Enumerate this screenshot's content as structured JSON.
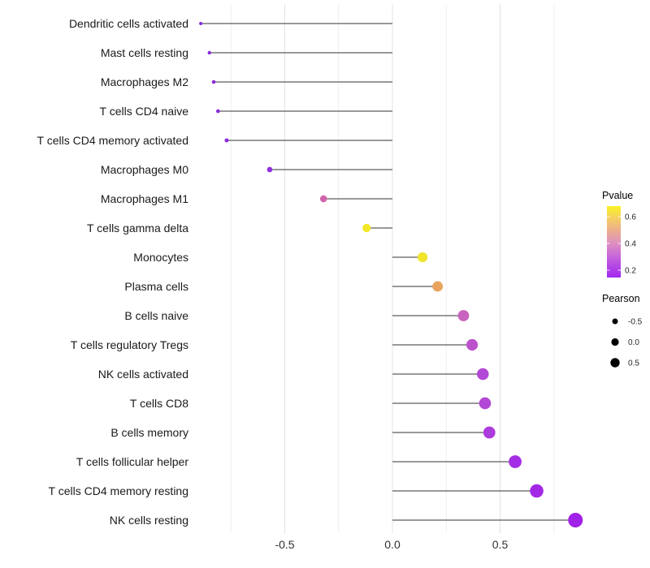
{
  "chart_data": {
    "type": "lollipop",
    "orientation": "horizontal",
    "title": "",
    "xlabel": "",
    "ylabel": "",
    "x_ticks": [
      {
        "label": "-0.5",
        "value": -0.5
      },
      {
        "label": "0.0",
        "value": 0.0
      },
      {
        "label": "0.5",
        "value": 0.5
      }
    ],
    "gridline_values": [
      -0.75,
      -0.5,
      -0.25,
      0,
      0.25,
      0.5,
      0.75
    ],
    "xlim": [
      -0.95,
      0.95
    ],
    "baseline": 0,
    "grid": "vertical-only",
    "points": [
      {
        "label": "Dendritic cells activated",
        "pearson": -0.89,
        "pvalue": 0.05,
        "color": "#8829DC"
      },
      {
        "label": "Mast cells resting",
        "pearson": -0.85,
        "pvalue": 0.05,
        "color": "#8929DC"
      },
      {
        "label": "Macrophages M2",
        "pearson": -0.83,
        "pvalue": 0.05,
        "color": "#8A29DC"
      },
      {
        "label": "T cells CD4 naive",
        "pearson": -0.81,
        "pvalue": 0.05,
        "color": "#8A2ADC"
      },
      {
        "label": "T cells CD4 memory activated",
        "pearson": -0.77,
        "pvalue": 0.06,
        "color": "#8C2BDD"
      },
      {
        "label": "Macrophages M0",
        "pearson": -0.57,
        "pvalue": 0.08,
        "color": "#9330E0"
      },
      {
        "label": "Macrophages M1",
        "pearson": -0.32,
        "pvalue": 0.3,
        "color": "#D264AE"
      },
      {
        "label": "T cells gamma delta",
        "pearson": -0.12,
        "pvalue": 0.62,
        "color": "#F2E827"
      },
      {
        "label": "Monocytes",
        "pearson": 0.14,
        "pvalue": 0.6,
        "color": "#F0E52C"
      },
      {
        "label": "Plasma cells",
        "pearson": 0.21,
        "pvalue": 0.45,
        "color": "#E8A45E"
      },
      {
        "label": "B cells naive",
        "pearson": 0.33,
        "pvalue": 0.24,
        "color": "#C964BE"
      },
      {
        "label": "T cells regulatory  Tregs",
        "pearson": 0.37,
        "pvalue": 0.2,
        "color": "#BC52CC"
      },
      {
        "label": "NK cells activated",
        "pearson": 0.42,
        "pvalue": 0.16,
        "color": "#B347D6"
      },
      {
        "label": "T cells CD8",
        "pearson": 0.43,
        "pvalue": 0.16,
        "color": "#B347D6"
      },
      {
        "label": "B cells memory",
        "pearson": 0.45,
        "pvalue": 0.12,
        "color": "#AC3BDC"
      },
      {
        "label": "T cells follicular helper",
        "pearson": 0.57,
        "pvalue": 0.09,
        "color": "#A42CE4"
      },
      {
        "label": "T cells CD4 memory resting",
        "pearson": 0.67,
        "pvalue": 0.07,
        "color": "#A228E6"
      },
      {
        "label": "NK cells resting",
        "pearson": 0.85,
        "pvalue": 0.05,
        "color": "#A021E8"
      }
    ],
    "legend_position": "right",
    "legends": {
      "pvalue": {
        "title": "Pvalue",
        "tick_labels": [
          "0.6",
          "0.4",
          "0.2"
        ],
        "gradient_top_to_bottom": [
          "#FBF224",
          "#F5D060",
          "#ECAE8C",
          "#DF93BC",
          "#CD6FD6",
          "#B548E4",
          "#A228EE"
        ],
        "range_top": 0.65,
        "range_bottom": 0.13
      },
      "pearson": {
        "title": "Pearson",
        "items": [
          {
            "label": "-0.5",
            "radius": 3.5
          },
          {
            "label": "0.0",
            "radius": 4.6
          },
          {
            "label": "0.5",
            "radius": 5.7
          }
        ],
        "dot_color": "#000000"
      }
    },
    "style": {
      "background": "#FFFFFF",
      "stem_color": "#333333",
      "grid_major_color": "#E3E3E3",
      "grid_minor_color": "#EFEFEF",
      "axis_text_color": "#303030",
      "category_text_color": "#1A1A1A",
      "legend_text_color": "#262626"
    }
  }
}
